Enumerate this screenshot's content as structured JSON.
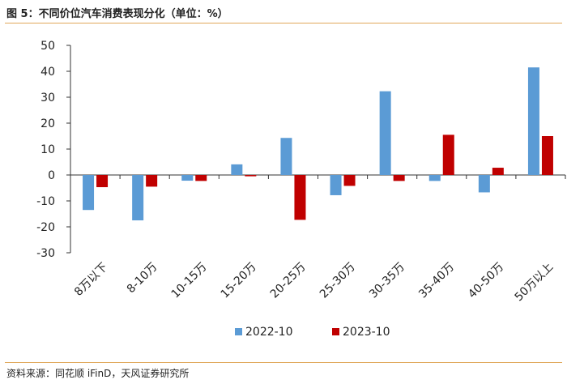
{
  "header": {
    "title": "图 5：不同价位汽车消费表现分化（单位：%）"
  },
  "footer": {
    "source": "资料来源：同花顺 iFinD，天风证券研究所"
  },
  "colors": {
    "series_2022": "#5b9bd5",
    "series_2023": "#c00000",
    "axis": "#333333",
    "rule": "#e0a85a"
  },
  "chart_data": {
    "type": "bar",
    "title": "图 5：不同价位汽车消费表现分化（单位：%）",
    "xlabel": "",
    "ylabel": "",
    "ylim": [
      -30,
      50
    ],
    "yticks": [
      "50",
      "40",
      "30",
      "20",
      "10",
      "0",
      "-10",
      "-20",
      "-30"
    ],
    "grid": false,
    "legend": "bottom",
    "categories": [
      "8万以下",
      "8-10万",
      "10-15万",
      "15-20万",
      "20-25万",
      "25-30万",
      "30-35万",
      "35-40万",
      "40-50万",
      "50万以上"
    ],
    "series": [
      {
        "name": "2022-10",
        "values": [
          -13.5,
          -17.5,
          -2.2,
          4.1,
          14.3,
          -7.8,
          32.3,
          -2.3,
          -6.7,
          41.5
        ]
      },
      {
        "name": "2023-10",
        "values": [
          -4.7,
          -4.5,
          -2.3,
          -0.5,
          -17.3,
          -4.2,
          -2.3,
          15.5,
          2.8,
          15.0
        ]
      }
    ]
  }
}
